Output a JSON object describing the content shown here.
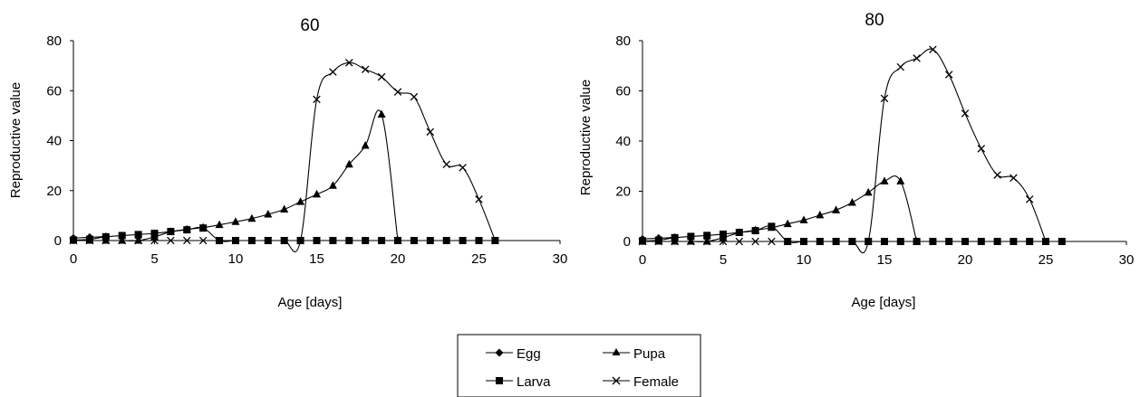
{
  "legend": {
    "entries": [
      {
        "label": "Egg",
        "marker": "diamond"
      },
      {
        "label": "Pupa",
        "marker": "triangle"
      },
      {
        "label": "Larva",
        "marker": "square"
      },
      {
        "label": "Female",
        "marker": "x"
      }
    ]
  },
  "chart_data": [
    {
      "type": "line",
      "title": "60",
      "xlabel": "Age [days]",
      "ylabel": "Reproductive value",
      "xlim": [
        0,
        30
      ],
      "ylim": [
        0,
        80
      ],
      "xticks": [
        0,
        5,
        10,
        15,
        20,
        25,
        30
      ],
      "yticks": [
        0,
        20,
        40,
        60,
        80
      ],
      "grid": false,
      "legend": "bottom-center",
      "series": [
        {
          "name": "Egg",
          "marker": "diamond",
          "x": [
            0,
            1,
            2
          ],
          "y": [
            1.0,
            1.3,
            1.6
          ]
        },
        {
          "name": "Larva",
          "marker": "square",
          "x": [
            0,
            1,
            2,
            3,
            4,
            5,
            6,
            7,
            8,
            9,
            10,
            11,
            12,
            13,
            14,
            15,
            16,
            17,
            18,
            19,
            20,
            21,
            22,
            23,
            24,
            25,
            26
          ],
          "y": [
            0.2,
            0.5,
            1.5,
            2.0,
            2.4,
            2.9,
            3.6,
            4.3,
            5.0,
            0,
            0,
            0,
            0,
            0,
            0,
            0,
            0,
            0,
            0,
            0,
            0,
            0,
            0,
            0,
            0,
            0,
            0
          ]
        },
        {
          "name": "Pupa",
          "marker": "triangle",
          "x": [
            0,
            1,
            2,
            3,
            4,
            5,
            6,
            7,
            8,
            9,
            10,
            11,
            12,
            13,
            14,
            15,
            16,
            17,
            18,
            19,
            20
          ],
          "y": [
            0,
            0,
            0,
            0,
            0,
            1.5,
            3.5,
            4.5,
            5.2,
            6.3,
            7.5,
            8.8,
            10.5,
            12.5,
            15.5,
            18.5,
            22,
            30.5,
            38,
            50.5,
            0
          ]
        },
        {
          "name": "Female",
          "marker": "x",
          "x": [
            0,
            1,
            2,
            3,
            4,
            5,
            6,
            7,
            8,
            9,
            10,
            11,
            12,
            13,
            14,
            15,
            16,
            17,
            18,
            19,
            20,
            21,
            22,
            23,
            24,
            25,
            26
          ],
          "y": [
            0,
            0,
            0,
            0,
            0,
            0,
            0,
            0,
            0,
            0,
            0,
            0,
            0,
            0,
            0,
            56.5,
            67.5,
            71.2,
            68.5,
            65.5,
            59.5,
            57.5,
            43.5,
            30.5,
            29.2,
            16.5,
            0
          ]
        }
      ]
    },
    {
      "type": "line",
      "title": "80",
      "xlabel": "Age [days]",
      "ylabel": "Reproductive value",
      "xlim": [
        0,
        30
      ],
      "ylim": [
        0,
        80
      ],
      "xticks": [
        0,
        5,
        10,
        15,
        20,
        25,
        30
      ],
      "yticks": [
        0,
        20,
        40,
        60,
        80
      ],
      "grid": false,
      "legend": "bottom-center",
      "series": [
        {
          "name": "Egg",
          "marker": "diamond",
          "x": [
            0,
            1,
            2
          ],
          "y": [
            1.0,
            1.3,
            1.6
          ]
        },
        {
          "name": "Larva",
          "marker": "square",
          "x": [
            0,
            1,
            2,
            3,
            4,
            5,
            6,
            7,
            8,
            9,
            10,
            11,
            12,
            13,
            14,
            15,
            16,
            17,
            18,
            19,
            20,
            21,
            22,
            23,
            24,
            25,
            26
          ],
          "y": [
            0.2,
            0.5,
            1.5,
            2.0,
            2.4,
            2.9,
            3.6,
            4.3,
            6.0,
            0,
            0,
            0,
            0,
            0,
            0,
            0,
            0,
            0,
            0,
            0,
            0,
            0,
            0,
            0,
            0,
            0,
            0
          ]
        },
        {
          "name": "Pupa",
          "marker": "triangle",
          "x": [
            0,
            1,
            2,
            3,
            4,
            5,
            6,
            7,
            8,
            9,
            10,
            11,
            12,
            13,
            14,
            15,
            16,
            17
          ],
          "y": [
            0,
            0,
            0,
            0,
            0,
            1.5,
            3.5,
            4.5,
            5.5,
            7.0,
            8.5,
            10.5,
            12.5,
            15.5,
            19.5,
            24.0,
            24.0,
            0
          ]
        },
        {
          "name": "Female",
          "marker": "x",
          "x": [
            0,
            1,
            2,
            3,
            4,
            5,
            6,
            7,
            8,
            9,
            10,
            11,
            12,
            13,
            14,
            15,
            16,
            17,
            18,
            19,
            20,
            21,
            22,
            23,
            24,
            25
          ],
          "y": [
            0,
            0,
            0,
            0,
            0,
            0,
            0,
            0,
            0,
            0,
            0,
            0,
            0,
            0,
            0,
            57,
            69.5,
            73,
            76.5,
            66.5,
            51,
            37,
            26.5,
            25.3,
            16.8,
            0
          ]
        }
      ]
    }
  ]
}
